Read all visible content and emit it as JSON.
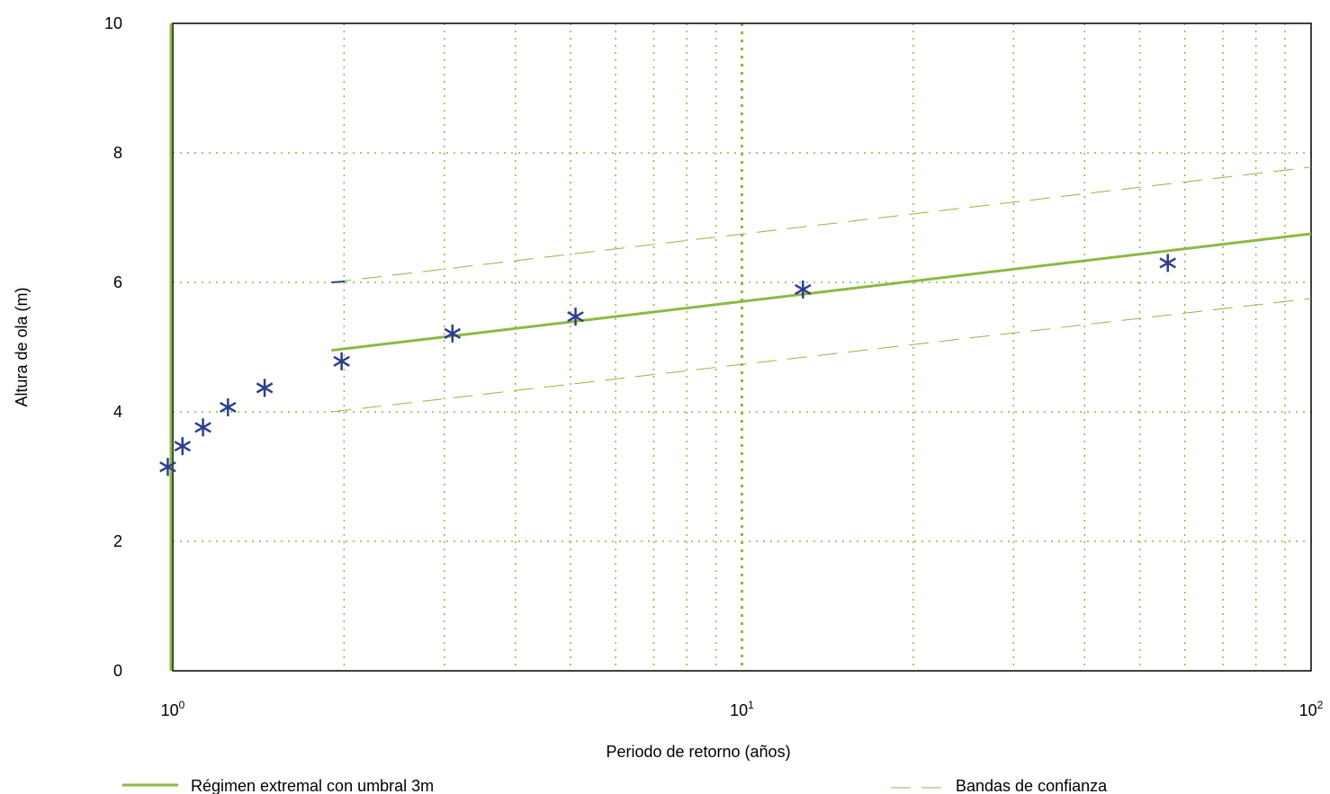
{
  "chart_data": {
    "type": "scatter",
    "xlabel": "Periodo de retorno (años)",
    "ylabel": "Altura de ola (m)",
    "xscale": "log",
    "xlim": [
      1,
      100
    ],
    "ylim": [
      0,
      10
    ],
    "grid": true,
    "x_ticks": [
      {
        "value": 1,
        "base": "10",
        "exp": "0"
      },
      {
        "value": 10,
        "base": "10",
        "exp": "1"
      },
      {
        "value": 100,
        "base": "10",
        "exp": "2"
      }
    ],
    "y_ticks": [
      {
        "value": 0,
        "label": "0"
      },
      {
        "value": 2,
        "label": "2"
      },
      {
        "value": 4,
        "label": "4"
      },
      {
        "value": 6,
        "label": "6"
      },
      {
        "value": 8,
        "label": "8"
      },
      {
        "value": 10,
        "label": "10"
      }
    ],
    "observed": {
      "marker": "asterisk",
      "color": "#2b3f8f",
      "x": [
        0.98,
        1.04,
        1.13,
        1.25,
        1.45,
        1.98,
        3.1,
        5.1,
        12.8,
        56
      ],
      "y": [
        3.15,
        3.47,
        3.76,
        4.07,
        4.37,
        4.78,
        5.21,
        5.47,
        5.89,
        6.3
      ]
    },
    "fit": {
      "name": "Régimen extremal con umbral 3m",
      "color": "#8db843",
      "x": [
        1.9,
        100
      ],
      "y": [
        4.95,
        6.75
      ]
    },
    "confidence_bands": {
      "name": "Bandas de confianza",
      "color": "#8db843",
      "upper": {
        "x": [
          1.9,
          100
        ],
        "y": [
          6.0,
          7.78
        ]
      },
      "lower": {
        "x": [
          1.9,
          100
        ],
        "y": [
          4.0,
          5.75
        ]
      }
    },
    "legend_position": "bottom"
  }
}
